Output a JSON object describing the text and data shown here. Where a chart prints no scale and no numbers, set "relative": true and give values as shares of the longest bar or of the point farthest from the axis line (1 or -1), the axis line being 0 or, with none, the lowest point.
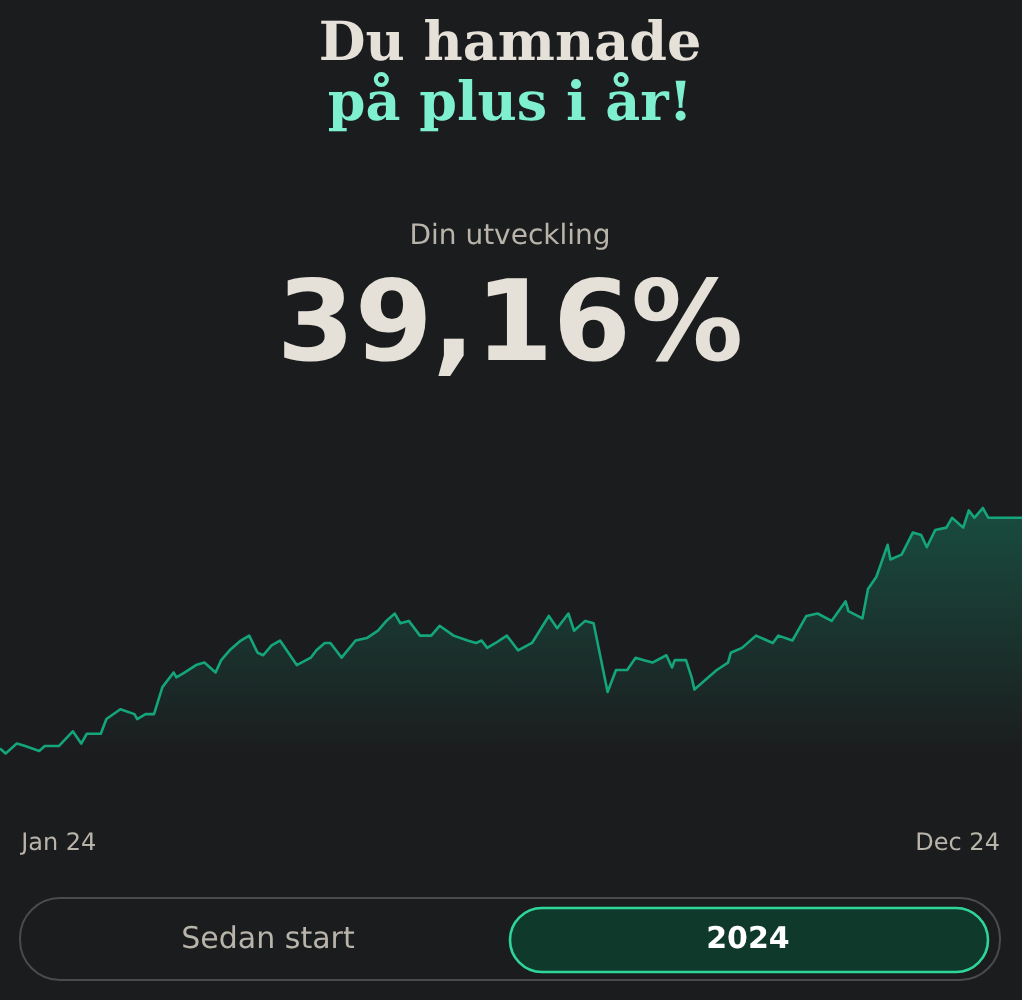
{
  "chart_data": {
    "type": "area",
    "relative": true,
    "title": "Du hamnade",
    "subtitle": "på plus i år!",
    "annotations": [
      "Din utveckling",
      "39,16%",
      "Sedan start",
      "2024"
    ],
    "x": [
      "2024-01-01",
      "2024-01-03",
      "2024-01-07",
      "2024-01-10",
      "2024-01-15",
      "2024-01-17",
      "2024-01-22",
      "2024-01-27",
      "2024-01-30",
      "2024-02-01",
      "2024-02-06",
      "2024-02-08",
      "2024-02-13",
      "2024-02-18",
      "2024-02-19",
      "2024-02-22",
      "2024-02-25",
      "2024-02-28",
      "2024-03-03",
      "2024-03-04",
      "2024-03-07",
      "2024-03-11",
      "2024-03-14",
      "2024-03-18",
      "2024-03-20",
      "2024-03-23",
      "2024-03-27",
      "2024-03-30",
      "2024-04-02",
      "2024-04-04",
      "2024-04-07",
      "2024-04-10",
      "2024-04-16",
      "2024-04-21",
      "2024-04-23",
      "2024-04-26",
      "2024-04-28",
      "2024-04-30",
      "2024-05-02",
      "2024-05-07",
      "2024-05-11",
      "2024-05-15",
      "2024-05-18",
      "2024-05-21",
      "2024-05-23",
      "2024-05-26",
      "2024-05-30",
      "2024-06-03",
      "2024-06-06",
      "2024-06-11",
      "2024-06-16",
      "2024-06-19",
      "2024-06-21",
      "2024-06-23",
      "2024-06-26",
      "2024-06-30",
      "2024-07-04",
      "2024-07-09",
      "2024-07-15",
      "2024-07-18",
      "2024-07-22",
      "2024-07-24",
      "2024-07-28",
      "2024-07-31",
      "2024-08-05",
      "2024-08-08",
      "2024-08-12",
      "2024-08-15",
      "2024-08-18",
      "2024-08-21",
      "2024-08-26",
      "2024-08-28",
      "2024-08-29",
      "2024-09-02",
      "2024-09-04",
      "2024-09-05",
      "2024-09-10",
      "2024-09-13",
      "2024-09-17",
      "2024-09-18",
      "2024-09-22",
      "2024-09-27",
      "2024-10-03",
      "2024-10-05",
      "2024-10-10",
      "2024-10-15",
      "2024-10-19",
      "2024-10-24",
      "2024-10-29",
      "2024-10-30",
      "2024-11-04",
      "2024-11-06",
      "2024-11-09",
      "2024-11-13",
      "2024-11-14",
      "2024-11-18",
      "2024-11-22",
      "2024-11-25",
      "2024-11-27",
      "2024-11-30",
      "2024-12-04",
      "2024-12-06",
      "2024-12-10",
      "2024-12-12",
      "2024-12-14",
      "2024-12-17",
      "2024-12-19",
      "2024-12-31"
    ],
    "series": [
      {
        "color": "#14a67a",
        "values": [
          0.02,
          0,
          0.04,
          0.03,
          0.01,
          0.03,
          0.03,
          0.09,
          0.04,
          0.08,
          0.08,
          0.14,
          0.18,
          0.16,
          0.14,
          0.16,
          0.16,
          0.27,
          0.33,
          0.31,
          0.33,
          0.36,
          0.37,
          0.33,
          0.38,
          0.42,
          0.46,
          0.48,
          0.41,
          0.4,
          0.44,
          0.46,
          0.36,
          0.39,
          0.42,
          0.45,
          0.45,
          0.42,
          0.39,
          0.46,
          0.47,
          0.5,
          0.54,
          0.57,
          0.53,
          0.54,
          0.48,
          0.48,
          0.52,
          0.48,
          0.46,
          0.45,
          0.46,
          0.43,
          0.45,
          0.48,
          0.42,
          0.45,
          0.56,
          0.51,
          0.57,
          0.5,
          0.54,
          0.53,
          0.25,
          0.34,
          0.34,
          0.39,
          0.38,
          0.37,
          0.4,
          0.35,
          0.38,
          0.38,
          0.31,
          0.26,
          0.31,
          0.34,
          0.37,
          0.41,
          0.43,
          0.48,
          0.45,
          0.48,
          0.46,
          0.56,
          0.57,
          0.54,
          0.62,
          0.58,
          0.55,
          0.67,
          0.72,
          0.85,
          0.79,
          0.81,
          0.9,
          0.89,
          0.84,
          0.91,
          0.92,
          0.96,
          0.92,
          0.99,
          0.96,
          1,
          0.96,
          0.96
        ]
      }
    ],
    "xlim": [
      "2024-01-01",
      "2024-12-31"
    ],
    "xticks": [
      {
        "value": "2024-01-22",
        "label": "Jan 24"
      },
      {
        "value": "2024-12-08",
        "label": "Dec 24"
      }
    ],
    "grid": false,
    "tick_labels": "x"
  }
}
